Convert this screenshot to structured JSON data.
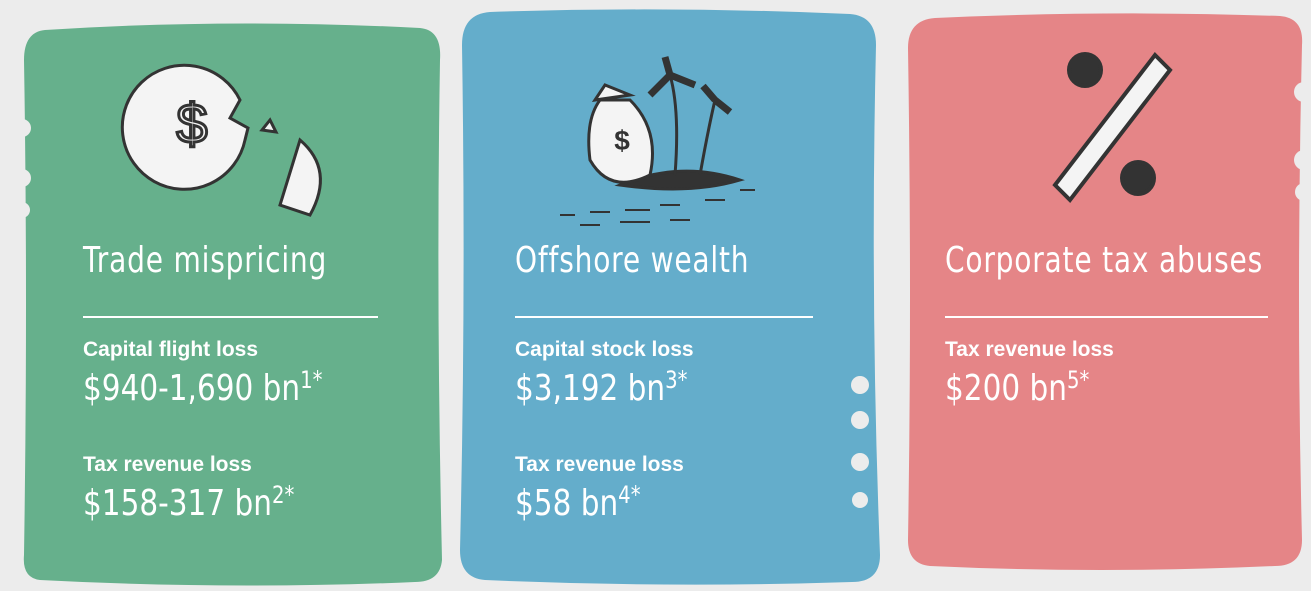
{
  "cards": [
    {
      "title": "Trade mispricing",
      "items": [
        {
          "label": "Capital flight loss",
          "value": "$940-1,690 bn",
          "note": "1*"
        },
        {
          "label": "Tax revenue loss",
          "value": "$158-317 bn",
          "note": "2*"
        }
      ]
    },
    {
      "title": "Offshore wealth",
      "items": [
        {
          "label": "Capital stock loss",
          "value": "$3,192 bn",
          "note": "3*"
        },
        {
          "label": "Tax revenue loss",
          "value": "$58 bn",
          "note": "4*"
        }
      ]
    },
    {
      "title": "Corporate tax abuses",
      "items": [
        {
          "label": "Tax revenue loss",
          "value": "$200 bn",
          "note": "5*"
        }
      ]
    }
  ]
}
